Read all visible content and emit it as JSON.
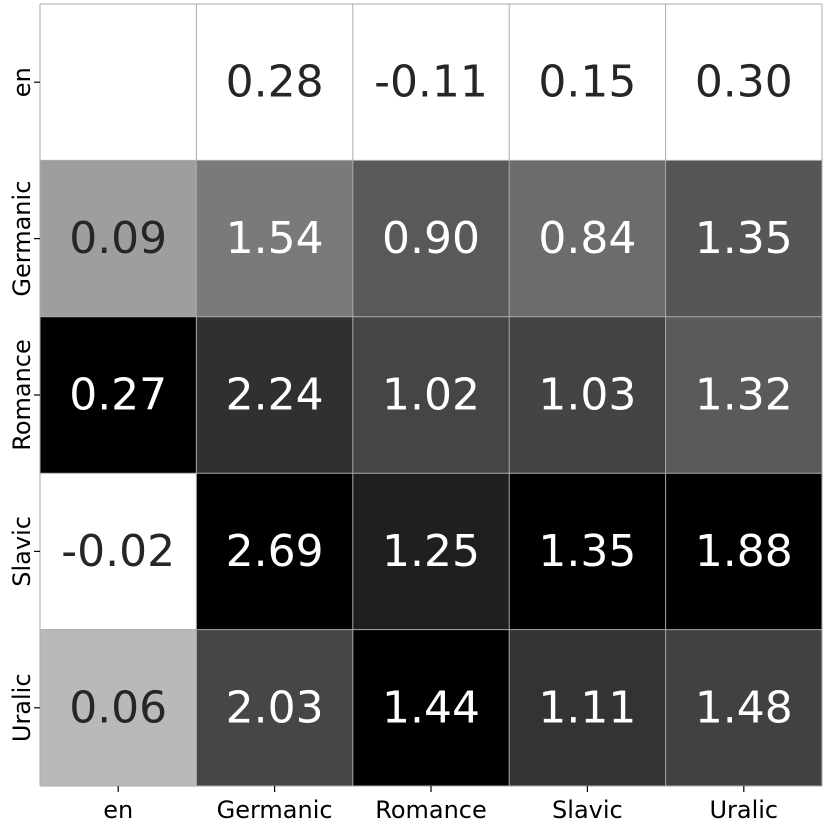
{
  "chart_data": {
    "type": "heatmap",
    "title": "",
    "xlabel": "",
    "ylabel": "",
    "x_categories": [
      "en",
      "Germanic",
      "Romance",
      "Slavic",
      "Uralic"
    ],
    "y_categories": [
      "en",
      "Germanic",
      "Romance",
      "Slavic",
      "Uralic"
    ],
    "values": [
      [
        null,
        0.28,
        -0.11,
        0.15,
        0.3
      ],
      [
        0.09,
        1.54,
        0.9,
        0.84,
        1.35
      ],
      [
        0.27,
        2.24,
        1.02,
        1.03,
        1.32
      ],
      [
        -0.02,
        2.69,
        1.25,
        1.35,
        1.88
      ],
      [
        0.06,
        2.03,
        1.44,
        1.11,
        1.48
      ]
    ],
    "value_labels": [
      [
        "",
        "0.28",
        "-0.11",
        "0.15",
        "0.30"
      ],
      [
        "0.09",
        "1.54",
        "0.90",
        "0.84",
        "1.35"
      ],
      [
        "0.27",
        "2.24",
        "1.02",
        "1.03",
        "1.32"
      ],
      [
        "-0.02",
        "2.69",
        "1.25",
        "1.35",
        "1.88"
      ],
      [
        "0.06",
        "2.03",
        "1.44",
        "1.11",
        "1.48"
      ]
    ],
    "colormap": "grayscale, each column scaled independently (white = low, black = high)",
    "colors": {
      "low": "#ffffff",
      "high": "#000000",
      "text_dark": "#262626",
      "text_light": "#ffffff",
      "grid": "#aaaaaa"
    },
    "grid": true,
    "legend": "none"
  }
}
